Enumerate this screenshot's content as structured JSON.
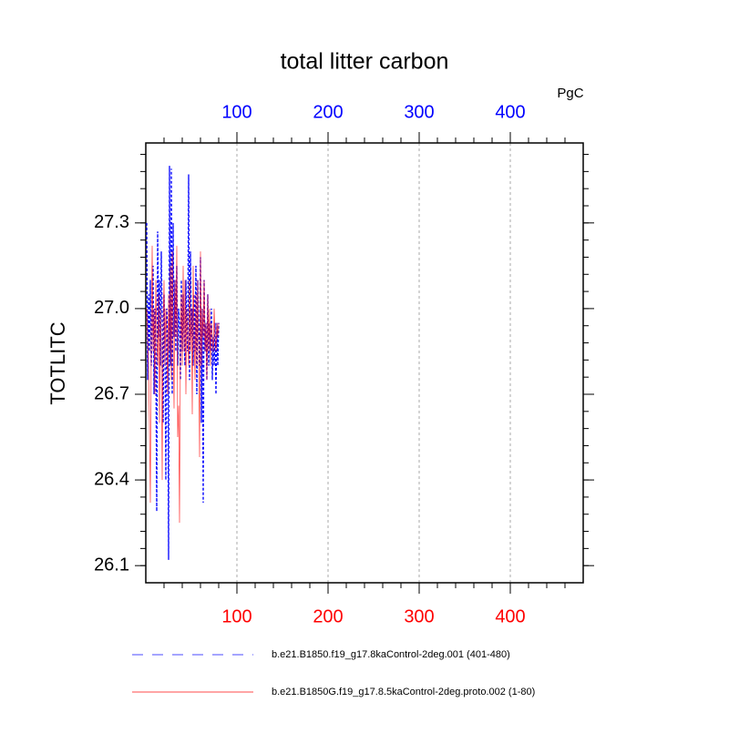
{
  "chart_data": {
    "type": "line",
    "title": "total litter carbon",
    "y_label": "TOTLITC",
    "units_label": "PgC",
    "x": [
      1,
      2,
      3,
      4,
      5,
      6,
      7,
      8,
      9,
      10,
      11,
      12,
      13,
      14,
      15,
      16,
      17,
      18,
      19,
      20,
      21,
      22,
      23,
      24,
      25,
      26,
      27,
      28,
      29,
      30,
      31,
      32,
      33,
      34,
      35,
      36,
      37,
      38,
      39,
      40,
      41,
      42,
      43,
      44,
      45,
      46,
      47,
      48,
      49,
      50,
      51,
      52,
      53,
      54,
      55,
      56,
      57,
      58,
      59,
      60,
      61,
      62,
      63,
      64,
      65,
      66,
      67,
      68,
      69,
      70,
      71,
      72,
      73,
      74,
      75,
      76,
      77,
      78,
      79,
      80
    ],
    "series": [
      {
        "name": "b.e21.B1850.f19_g17.8kaControl-2deg.001 (401-480)",
        "color": "#0000ff",
        "dash": true,
        "values": [
          27.3,
          26.75,
          27.05,
          26.85,
          27.1,
          26.8,
          26.95,
          27.15,
          26.7,
          27.0,
          26.85,
          26.29,
          27.27,
          26.9,
          27.1,
          26.8,
          27.2,
          26.95,
          26.6,
          27.05,
          26.85,
          26.4,
          27.0,
          26.9,
          26.12,
          27.5,
          26.8,
          27.49,
          26.7,
          27.3,
          26.9,
          27.1,
          26.85,
          27.15,
          26.8,
          27.0,
          26.95,
          26.75,
          27.1,
          26.85,
          27.05,
          26.9,
          26.8,
          27.1,
          26.9,
          26.85,
          27.47,
          26.75,
          27.2,
          26.9,
          27.0,
          26.8,
          27.05,
          26.85,
          27.15,
          26.7,
          27.1,
          26.9,
          26.8,
          27.18,
          26.6,
          27.0,
          26.32,
          27.1,
          26.85,
          26.95,
          26.75,
          27.05,
          26.8,
          26.95,
          26.85,
          27.0,
          26.75,
          26.9,
          26.8,
          26.95,
          26.7,
          26.95,
          26.8,
          26.95
        ]
      },
      {
        "name": "b.e21.B1850G.f19_g17.8.5kaControl-2deg.proto.002 (1-80)",
        "color": "#ff0000",
        "dash": false,
        "values": [
          27.0,
          26.9,
          26.8,
          26.6,
          26.32,
          26.9,
          27.22,
          26.85,
          27.0,
          26.7,
          27.1,
          26.9,
          26.8,
          27.05,
          26.6,
          27.0,
          26.85,
          26.4,
          26.95,
          27.1,
          26.8,
          27.0,
          26.9,
          26.7,
          27.05,
          26.85,
          27.15,
          26.75,
          27.2,
          26.9,
          26.65,
          27.1,
          26.9,
          27.22,
          26.55,
          26.66,
          26.25,
          26.9,
          27.05,
          26.8,
          27.15,
          26.85,
          27.1,
          26.7,
          27.0,
          26.9,
          26.8,
          27.1,
          26.85,
          27.0,
          26.63,
          27.15,
          26.9,
          26.75,
          27.05,
          26.8,
          27.1,
          26.85,
          26.48,
          27.2,
          26.8,
          27.0,
          26.9,
          27.1,
          26.85,
          26.95,
          26.75,
          27.05,
          26.85,
          27.0,
          26.8,
          26.95,
          26.9,
          26.85,
          27.0,
          26.9,
          26.85,
          26.95,
          26.9,
          26.95
        ]
      }
    ],
    "xlim": [
      0,
      480
    ],
    "xticks": [
      100,
      200,
      300,
      400
    ],
    "xtick_color": "#ff0000",
    "x2ticks": [
      100,
      200,
      300,
      400
    ],
    "x2tick_color": "#0000ff",
    "ylim": [
      26.04,
      27.58
    ],
    "yticks": [
      {
        "value": 26.1,
        "label": "26.1"
      },
      {
        "value": 26.4,
        "label": "26.4"
      },
      {
        "value": 26.7,
        "label": "26.7"
      },
      {
        "value": 27.0,
        "label": "27.0"
      },
      {
        "value": 27.3,
        "label": "27.3"
      }
    ],
    "grid": true
  }
}
